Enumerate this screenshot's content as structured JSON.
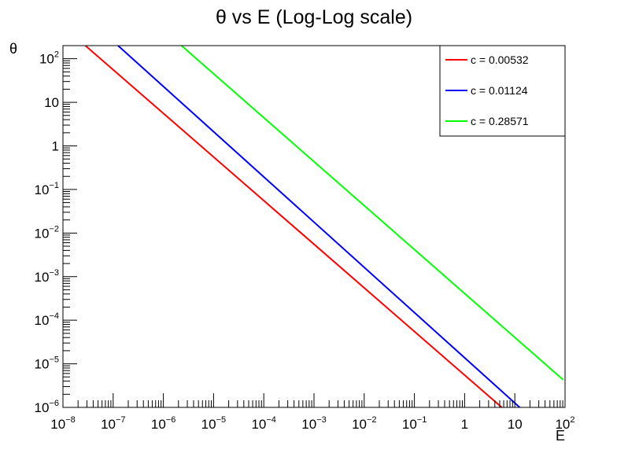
{
  "chart_data": {
    "type": "line",
    "title": "θ vs E (Log-Log scale)",
    "xlabel": "E",
    "ylabel": "θ",
    "x_scale": "log",
    "y_scale": "log",
    "xlim": [
      1e-08,
      100
    ],
    "ylim": [
      1e-06,
      200
    ],
    "x_ticks": [
      {
        "value": 1e-08,
        "base": "10",
        "exp": "−8"
      },
      {
        "value": 1e-07,
        "base": "10",
        "exp": "−7"
      },
      {
        "value": 1e-06,
        "base": "10",
        "exp": "−6"
      },
      {
        "value": 1e-05,
        "base": "10",
        "exp": "−5"
      },
      {
        "value": 0.0001,
        "base": "10",
        "exp": "−4"
      },
      {
        "value": 0.001,
        "base": "10",
        "exp": "−3"
      },
      {
        "value": 0.01,
        "base": "10",
        "exp": "−2"
      },
      {
        "value": 0.1,
        "base": "10",
        "exp": "−1"
      },
      {
        "value": 1,
        "base": "1",
        "exp": ""
      },
      {
        "value": 10,
        "base": "10",
        "exp": ""
      },
      {
        "value": 100,
        "base": "10",
        "exp": "2"
      }
    ],
    "y_ticks": [
      {
        "value": 1e-06,
        "base": "10",
        "exp": "−6"
      },
      {
        "value": 1e-05,
        "base": "10",
        "exp": "−5"
      },
      {
        "value": 0.0001,
        "base": "10",
        "exp": "−4"
      },
      {
        "value": 0.001,
        "base": "10",
        "exp": "−3"
      },
      {
        "value": 0.01,
        "base": "10",
        "exp": "−2"
      },
      {
        "value": 0.1,
        "base": "10",
        "exp": "−1"
      },
      {
        "value": 1,
        "base": "1",
        "exp": ""
      },
      {
        "value": 10,
        "base": "10",
        "exp": ""
      },
      {
        "value": 100,
        "base": "10",
        "exp": "2"
      }
    ],
    "grid": false,
    "legend_position": "top-right",
    "series": [
      {
        "name": "c = 0.00532",
        "color": "#ff0000",
        "x": [
          2.8e-08,
          5.5
        ],
        "y": [
          200,
          1e-06
        ]
      },
      {
        "name": "c = 0.01124",
        "color": "#0000ff",
        "x": [
          1.25e-07,
          12.5
        ],
        "y": [
          200,
          1e-06
        ]
      },
      {
        "name": "c = 0.28571",
        "color": "#00ff00",
        "x": [
          2.3e-06,
          92
        ],
        "y": [
          200,
          4.3e-06
        ]
      }
    ]
  }
}
